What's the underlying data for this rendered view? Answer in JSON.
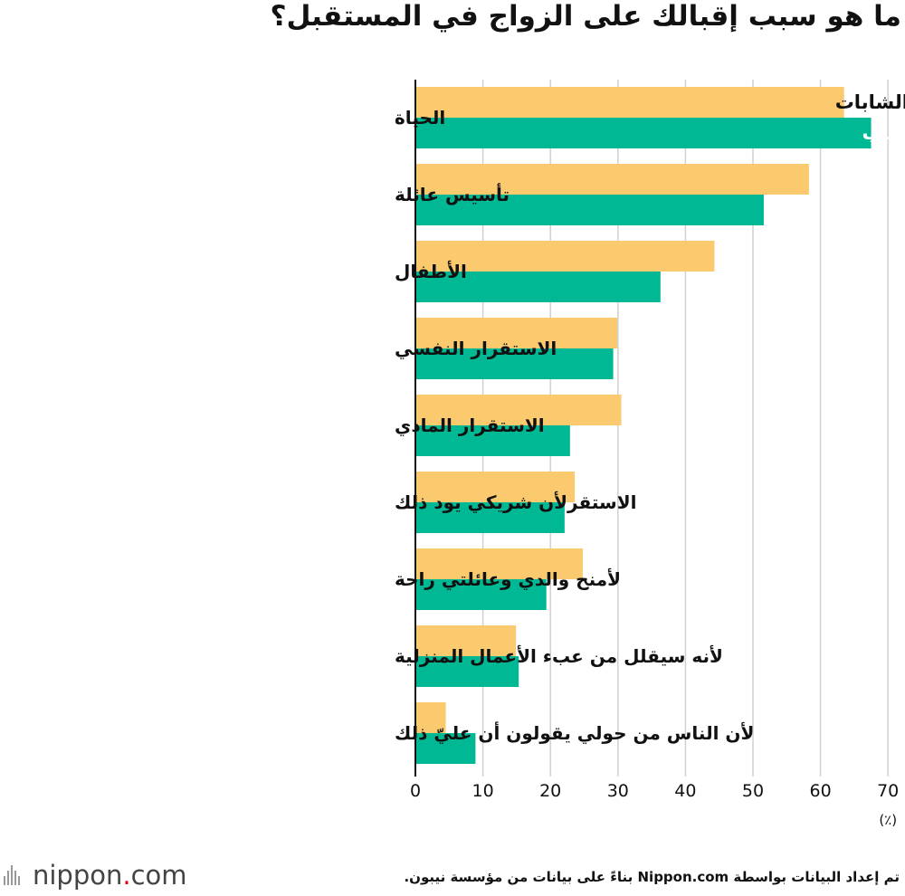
{
  "title": "ما هو سبب إقبالك على الزواج في المستقبل؟",
  "source_note": "تم إعداد البيانات بواسطة Nippon.com بناءً على بيانات من مؤسسة نيبون.",
  "logo": {
    "text_main": "nippon",
    "text_dot": ".",
    "text_tld": "com"
  },
  "colors": {
    "women": "#fcca6e",
    "men": "#00b894",
    "grid": "#d0d0d0",
    "axis": "#111111"
  },
  "chart_data": {
    "type": "bar",
    "orientation": "horizontal",
    "title": "ما هو سبب إقبالك على الزواج في المستقبل؟",
    "unit": "(٪)",
    "xlim": [
      0,
      70
    ],
    "xticks": [
      0,
      10,
      20,
      30,
      40,
      50,
      60,
      70
    ],
    "grid": true,
    "legend_placement": "inside top bar",
    "categories": [
      "الحياة",
      "تأسيس عائلة",
      "الأطفال",
      "الاستقرار النفسي",
      "الاستقرار المادي",
      "الاستقرلأن شريكي يود ذلك",
      "لأمنح والدي وعائلتي راحة",
      "لأنه سيقلل من عبء الأعمال المنزلية",
      "لأن الناس من حولي يقولون أن عليّ ذلك"
    ],
    "series": [
      {
        "name": "الشابات",
        "color": "#fcca6e",
        "values": [
          63.5,
          58.3,
          44.3,
          29.9,
          30.5,
          23.6,
          24.8,
          14.9,
          4.5
        ]
      },
      {
        "name": "الشباب",
        "color": "#00b894",
        "values": [
          67.5,
          51.6,
          36.3,
          29.3,
          22.9,
          22.1,
          19.4,
          15.3,
          8.9
        ]
      }
    ]
  }
}
